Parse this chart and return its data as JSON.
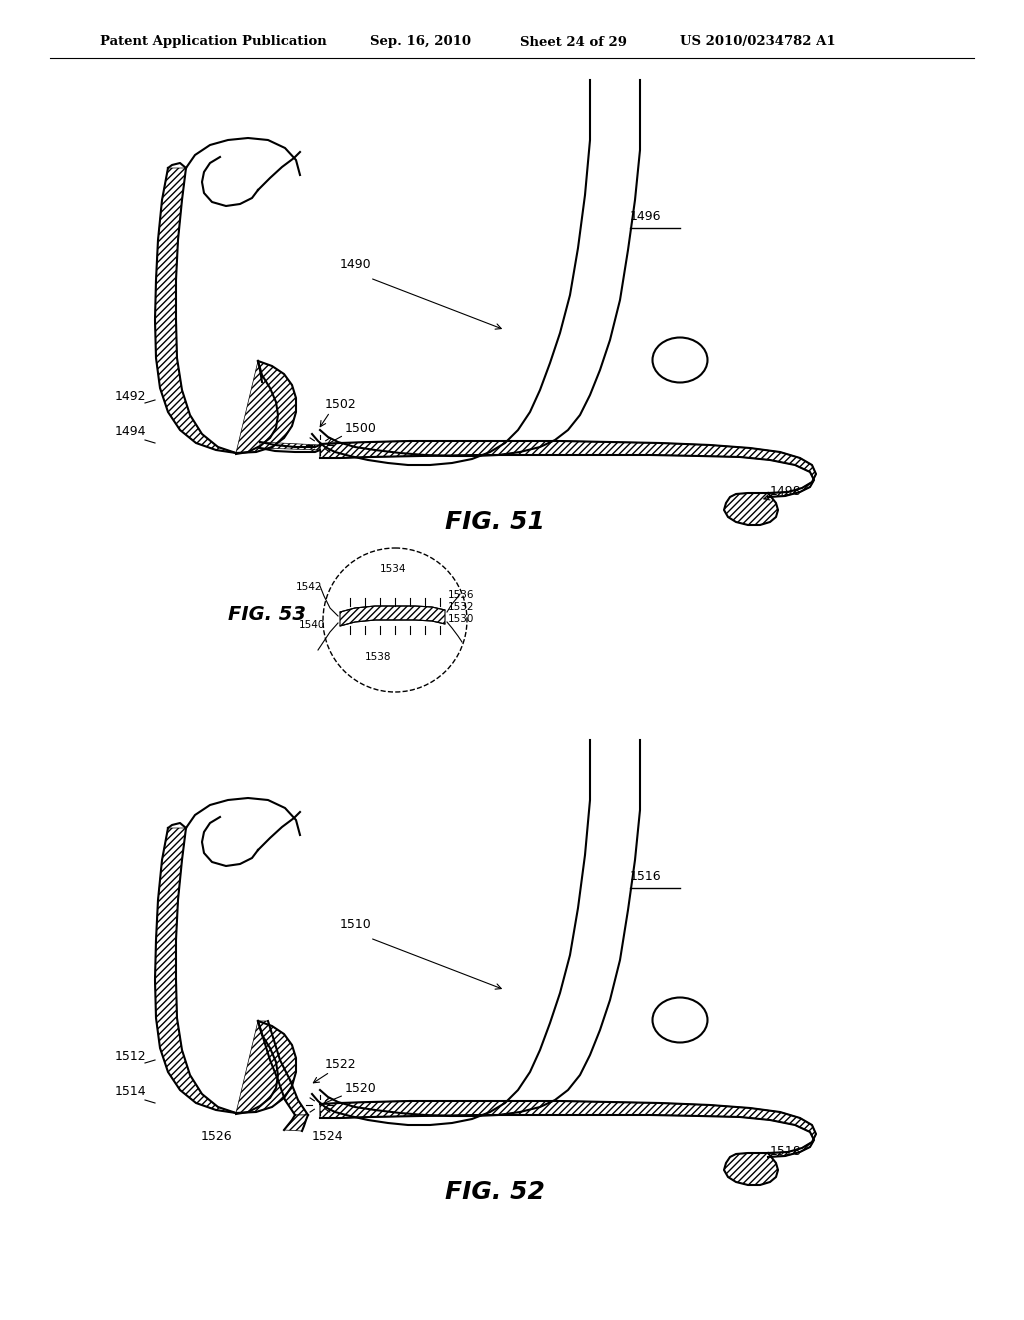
{
  "bg_color": "#ffffff",
  "header_text": "Patent Application Publication",
  "header_date": "Sep. 16, 2010",
  "header_sheet": "Sheet 24 of 29",
  "header_patent": "US 2010/0234782 A1",
  "fig51_label": "FIG. 51",
  "fig52_label": "FIG. 52",
  "fig53_label": "FIG. 53",
  "line_color": "#000000",
  "text_color": "#000000",
  "font_size_header": 9,
  "font_size_label": 8,
  "font_size_fig": 16
}
